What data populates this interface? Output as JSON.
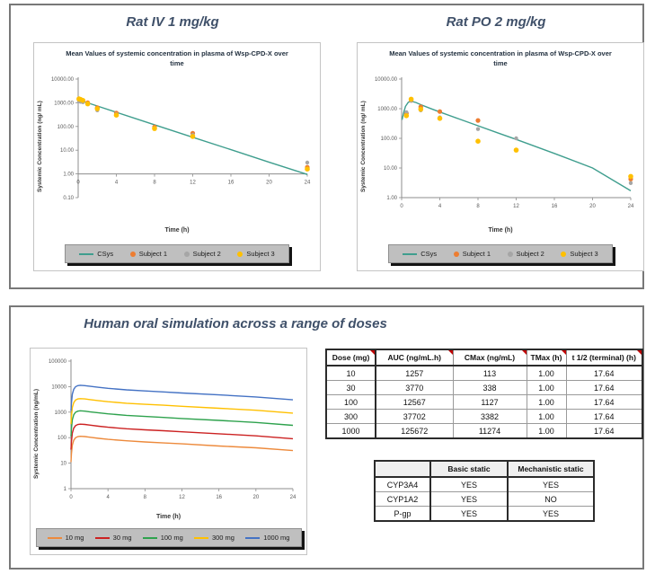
{
  "rat_section": {
    "left_title": "Rat IV 1 mg/kg",
    "right_title": "Rat PO 2 mg/kg"
  },
  "human_section": {
    "title": "Human oral simulation across a range of doses"
  },
  "chart_data": [
    {
      "type": "line",
      "title": "Mean Values of systemic concentration in plasma of Wsp-CPD-X over time",
      "xlabel": "Time (h)",
      "ylabel": "Systemic Concentration (ng/ mL)",
      "y_scale": "log",
      "xlim": [
        0,
        24
      ],
      "ylim": [
        0.1,
        10000
      ],
      "x_ticks": [
        0,
        4,
        8,
        12,
        16,
        20,
        24
      ],
      "y_tick_labels": [
        "10000.00",
        "1000.00",
        "100.00",
        "10.00",
        "1.00",
        "0.10"
      ],
      "x_axis_at": 1.0,
      "grid": false,
      "legend_position": "bottom",
      "series": [
        {
          "name": "CSys",
          "type": "line",
          "color": "#3f9e8e",
          "points": [
            [
              0.05,
              1320
            ],
            [
              0.5,
              1150
            ],
            [
              1,
              990
            ],
            [
              2,
              730
            ],
            [
              4,
              395
            ],
            [
              8,
              118
            ],
            [
              12,
              35
            ],
            [
              16,
              10.5
            ],
            [
              20,
              3.1
            ],
            [
              24,
              0.95
            ]
          ]
        },
        {
          "name": "Subject 1",
          "type": "scatter",
          "color": "#ed7d31",
          "r": 2.6,
          "points": [
            [
              0.083,
              1400
            ],
            [
              0.25,
              1300
            ],
            [
              0.5,
              1200
            ],
            [
              1,
              1000
            ],
            [
              2,
              620
            ],
            [
              4,
              370
            ],
            [
              8,
              95
            ],
            [
              12,
              52
            ],
            [
              24,
              1.9
            ]
          ]
        },
        {
          "name": "Subject 2",
          "type": "scatter",
          "color": "#a6a6a6",
          "r": 2.2,
          "points": [
            [
              0.083,
              1150
            ],
            [
              0.25,
              1100
            ],
            [
              0.5,
              1050
            ],
            [
              1,
              930
            ],
            [
              2,
              480
            ],
            [
              4,
              330
            ],
            [
              8,
              88
            ],
            [
              12,
              44
            ],
            [
              24,
              3.0
            ]
          ]
        },
        {
          "name": "Subject 3",
          "type": "scatter",
          "color": "#ffc000",
          "r": 2.8,
          "points": [
            [
              0.083,
              1450
            ],
            [
              0.25,
              1380
            ],
            [
              0.5,
              1250
            ],
            [
              1,
              900
            ],
            [
              2,
              560
            ],
            [
              4,
              300
            ],
            [
              8,
              82
            ],
            [
              12,
              38
            ],
            [
              24,
              1.6
            ]
          ]
        }
      ]
    },
    {
      "type": "line",
      "title": "Mean Values of systemic concentration in plasma of Wsp-CPD-X over time",
      "xlabel": "Time (h)",
      "ylabel": "Systemic Concentration (ng/ mL)",
      "y_scale": "log",
      "xlim": [
        0,
        24
      ],
      "ylim": [
        1,
        10000
      ],
      "x_ticks": [
        0,
        4,
        8,
        12,
        16,
        20,
        24
      ],
      "y_tick_labels": [
        "10000.00",
        "1000.00",
        "100.00",
        "10.00",
        "1.00"
      ],
      "x_axis_at": 1.0,
      "grid": false,
      "legend_position": "bottom",
      "series": [
        {
          "name": "CSys",
          "type": "line",
          "color": "#3f9e8e",
          "points": [
            [
              0.05,
              420
            ],
            [
              0.2,
              700
            ],
            [
              0.4,
              1200
            ],
            [
              0.7,
              1650
            ],
            [
              1,
              1790
            ],
            [
              1.5,
              1620
            ],
            [
              2,
              1370
            ],
            [
              3,
              1020
            ],
            [
              4,
              770
            ],
            [
              6,
              450
            ],
            [
              8,
              265
            ],
            [
              10,
              155
            ],
            [
              12,
              92
            ],
            [
              16,
              31
            ],
            [
              20,
              10
            ],
            [
              24,
              1.7
            ]
          ]
        },
        {
          "name": "Subject 1",
          "type": "scatter",
          "color": "#ed7d31",
          "r": 2.6,
          "points": [
            [
              0.5,
              700
            ],
            [
              1,
              1900
            ],
            [
              2,
              1150
            ],
            [
              4,
              800
            ],
            [
              8,
              400
            ],
            [
              24,
              4.2
            ]
          ]
        },
        {
          "name": "Subject 2",
          "type": "scatter",
          "color": "#a6a6a6",
          "r": 2.2,
          "points": [
            [
              0.5,
              760
            ],
            [
              1,
              1850
            ],
            [
              2,
              880
            ],
            [
              4,
              510
            ],
            [
              8,
              205
            ],
            [
              12,
              100
            ],
            [
              24,
              3.1
            ]
          ]
        },
        {
          "name": "Subject 3",
          "type": "scatter",
          "color": "#ffc000",
          "r": 2.8,
          "points": [
            [
              0.5,
              580
            ],
            [
              1,
              2100
            ],
            [
              2,
              960
            ],
            [
              4,
              470
            ],
            [
              8,
              80
            ],
            [
              12,
              40
            ],
            [
              24,
              5.2
            ]
          ]
        }
      ]
    },
    {
      "type": "line",
      "title": "Human oral simulation across a range of doses",
      "xlabel": "Time (h)",
      "ylabel": "Systemic Concentration (ng/mL)",
      "y_scale": "log",
      "xlim": [
        0,
        24
      ],
      "ylim": [
        1,
        100000
      ],
      "x_ticks": [
        0,
        4,
        8,
        12,
        16,
        20,
        24
      ],
      "y_tick_labels": [
        "100000",
        "10000",
        "1000",
        "100",
        "10",
        "1"
      ],
      "grid": false,
      "legend_position": "bottom",
      "x": [
        0,
        0.05,
        0.15,
        0.3,
        0.5,
        0.75,
        1,
        1.5,
        2,
        3,
        4,
        6,
        8,
        10,
        12,
        16,
        20,
        24
      ],
      "series": [
        {
          "name": "10 mg",
          "type": "line",
          "color": "#ed8a3c",
          "values": [
            11,
            23,
            51,
            79,
            99,
            110,
            113,
            110,
            104,
            94,
            86,
            75,
            68,
            62,
            57,
            47,
            40,
            31
          ]
        },
        {
          "name": "30 mg",
          "type": "line",
          "color": "#cc2222",
          "values": [
            34,
            68,
            152,
            237,
            297,
            328,
            338,
            328,
            311,
            281,
            257,
            223,
            203,
            186,
            169,
            142,
            118,
            91
          ]
        },
        {
          "name": "100 mg",
          "type": "line",
          "color": "#2ea24d",
          "values": [
            113,
            225,
            507,
            789,
            992,
            1093,
            1127,
            1093,
            1037,
            936,
            857,
            744,
            676,
            620,
            564,
            473,
            394,
            304
          ]
        },
        {
          "name": "300 mg",
          "type": "line",
          "color": "#ffc000",
          "values": [
            338,
            676,
            1522,
            2367,
            2976,
            3281,
            3382,
            3281,
            3111,
            2807,
            2570,
            2232,
            2029,
            1860,
            1691,
            1420,
            1184,
            913
          ]
        },
        {
          "name": "1000 mg",
          "type": "line",
          "color": "#4472c4",
          "values": [
            1127,
            2255,
            5073,
            7892,
            9921,
            10936,
            11274,
            10936,
            10372,
            9357,
            8568,
            7441,
            6764,
            6201,
            5637,
            4735,
            3946,
            3044
          ]
        }
      ]
    }
  ],
  "tables": {
    "pk": {
      "headers": [
        "Dose (mg)",
        "AUC (ng/mL.h)",
        "CMax (ng/mL)",
        "TMax (h)",
        "t 1/2 (terminal) (h)"
      ],
      "rows": [
        [
          "10",
          "1257",
          "113",
          "1.00",
          "17.64"
        ],
        [
          "30",
          "3770",
          "338",
          "1.00",
          "17.64"
        ],
        [
          "100",
          "12567",
          "1127",
          "1.00",
          "17.64"
        ],
        [
          "300",
          "37702",
          "3382",
          "1.00",
          "17.64"
        ],
        [
          "1000",
          "125672",
          "11274",
          "1.00",
          "17.64"
        ]
      ]
    },
    "ddi": {
      "headers": [
        "",
        "Basic static",
        "Mechanistic static"
      ],
      "rows": [
        [
          "CYP3A4",
          "YES",
          "YES"
        ],
        [
          "CYP1A2",
          "YES",
          "NO"
        ],
        [
          "P-gp",
          "YES",
          "YES"
        ]
      ]
    }
  }
}
